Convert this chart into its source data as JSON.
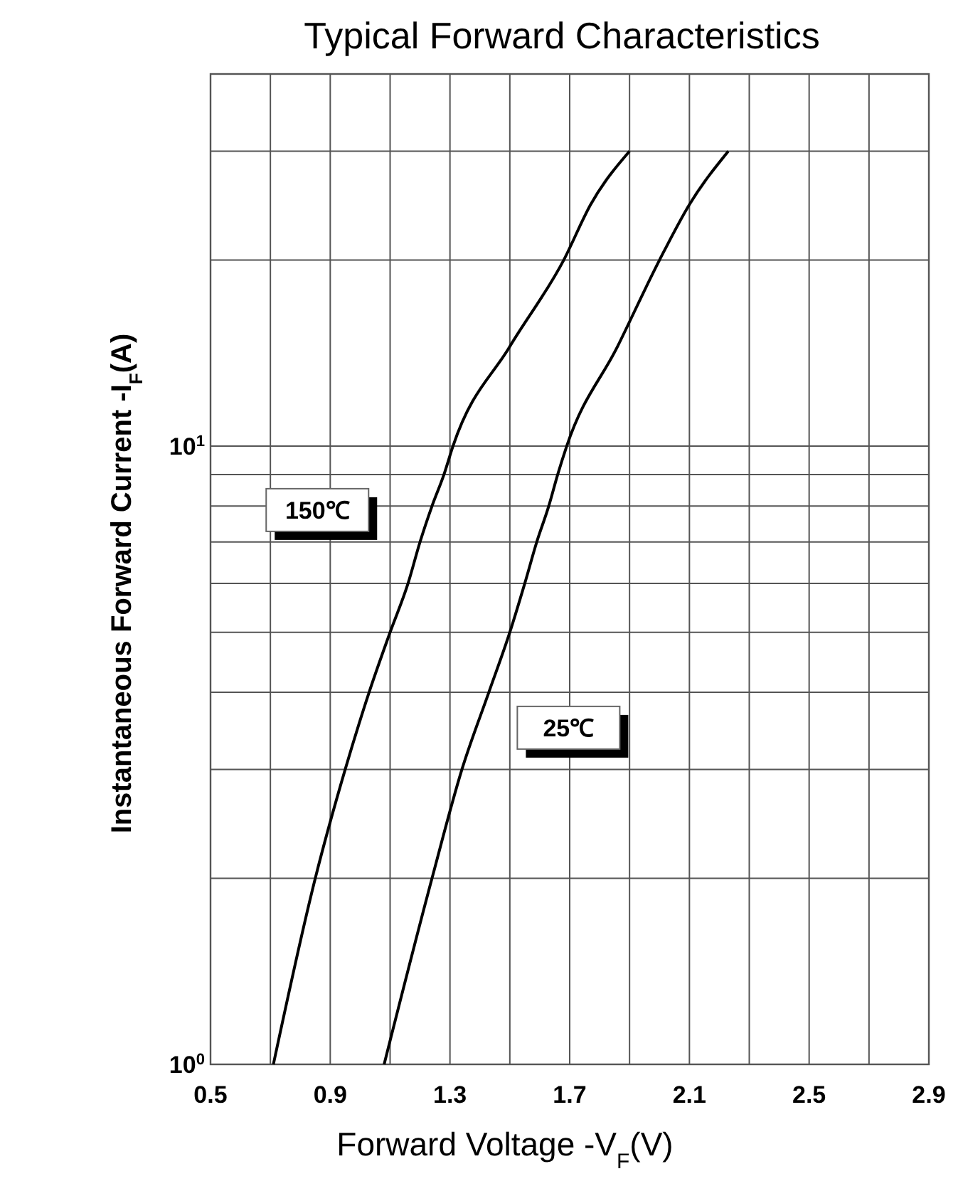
{
  "chart_data": {
    "type": "line",
    "title": "Typical Forward Characteristics",
    "xlabel": "Forward Voltage -V$_{F}$(V)",
    "ylabel": "Instantaneous Forward Current -I$_{F}$(A)",
    "log": "y",
    "grid": true,
    "marker": "none",
    "line_style": "solid",
    "xlim": [
      0.5,
      2.9
    ],
    "xticks": [
      0.5,
      {
        "value": 0.7,
        "label": null
      },
      0.9,
      {
        "value": 1.1,
        "label": null
      },
      1.3,
      {
        "value": 1.5,
        "label": null
      },
      1.7,
      {
        "value": 1.9,
        "label": null
      },
      2.1,
      {
        "value": 2.3,
        "label": null
      },
      2.5,
      {
        "value": 2.7,
        "label": null
      },
      2.9
    ],
    "ylim": [
      1,
      40
    ],
    "yticks": [
      {
        "value": 1,
        "label": "10$^{0}$"
      },
      {
        "value": 2,
        "label": null
      },
      {
        "value": 3,
        "label": null
      },
      {
        "value": 4,
        "label": null
      },
      {
        "value": 5,
        "label": null
      },
      {
        "value": 6,
        "label": null
      },
      {
        "value": 7,
        "label": null
      },
      {
        "value": 8,
        "label": null
      },
      {
        "value": 9,
        "label": null
      },
      {
        "value": 10,
        "label": "10$^{1}$"
      },
      {
        "value": 20,
        "label": null
      },
      {
        "value": 30,
        "label": null
      },
      {
        "value": 40,
        "label": null
      }
    ],
    "series": [
      {
        "name": "150℃",
        "color": "#000000",
        "x": [
          0.71,
          0.85,
          0.95,
          1.03,
          1.1,
          1.16,
          1.2,
          1.24,
          1.28,
          1.31,
          1.5,
          1.68,
          1.77,
          1.9
        ],
        "values": [
          1,
          2,
          3,
          4,
          5,
          6,
          7,
          8,
          9,
          10,
          14.5,
          20,
          24.6,
          30
        ]
      },
      {
        "name": "25℃",
        "color": "#000000",
        "x": [
          1.08,
          1.24,
          1.34,
          1.43,
          1.5,
          1.55,
          1.59,
          1.63,
          1.66,
          1.69,
          1.86,
          2.0,
          2.1,
          2.23
        ],
        "values": [
          1,
          2,
          3,
          4,
          5,
          6,
          7,
          8,
          9,
          10,
          14.5,
          20,
          24.6,
          30
        ]
      }
    ]
  }
}
